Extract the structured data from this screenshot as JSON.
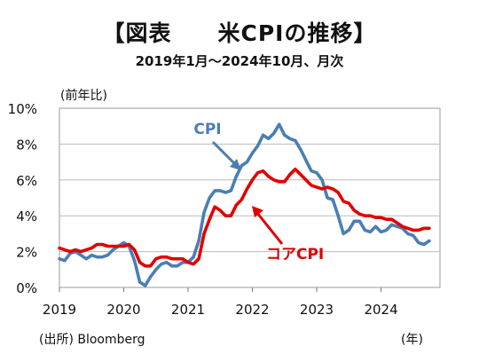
{
  "title": "【図表　　米CPIの推移】",
  "subtitle": "2019年1月～2024年10月、月次",
  "unit_label": "(前年比)",
  "source": "(出所) Bloomberg",
  "x_unit": "(年)",
  "chart_data": {
    "type": "line",
    "ylim": [
      0,
      10
    ],
    "yticks": [
      "0%",
      "2%",
      "4%",
      "6%",
      "8%",
      "10%"
    ],
    "xticks": [
      "2019",
      "2020",
      "2021",
      "2022",
      "2023",
      "2024"
    ],
    "x_start": "2019-01",
    "grid": true,
    "series": [
      {
        "name": "CPI",
        "color": "#4a7eb5",
        "values": [
          1.6,
          1.5,
          1.9,
          2.0,
          1.8,
          1.6,
          1.8,
          1.7,
          1.7,
          1.8,
          2.1,
          2.3,
          2.5,
          2.3,
          1.5,
          0.3,
          0.1,
          0.6,
          1.0,
          1.3,
          1.4,
          1.2,
          1.2,
          1.4,
          1.4,
          1.7,
          2.6,
          4.2,
          5.0,
          5.4,
          5.4,
          5.3,
          5.4,
          6.2,
          6.8,
          7.0,
          7.5,
          7.9,
          8.5,
          8.3,
          8.6,
          9.1,
          8.5,
          8.3,
          8.2,
          7.7,
          7.1,
          6.5,
          6.4,
          6.0,
          5.0,
          4.9,
          4.0,
          3.0,
          3.2,
          3.7,
          3.7,
          3.2,
          3.1,
          3.4,
          3.1,
          3.2,
          3.5,
          3.4,
          3.3,
          3.0,
          2.9,
          2.5,
          2.4,
          2.6
        ]
      },
      {
        "name": "コアCPI",
        "color": "#e00000",
        "values": [
          2.2,
          2.1,
          2.0,
          2.1,
          2.0,
          2.1,
          2.2,
          2.4,
          2.4,
          2.3,
          2.3,
          2.3,
          2.3,
          2.4,
          2.1,
          1.4,
          1.2,
          1.2,
          1.6,
          1.7,
          1.7,
          1.6,
          1.6,
          1.6,
          1.4,
          1.3,
          1.6,
          3.0,
          3.8,
          4.5,
          4.3,
          4.0,
          4.0,
          4.6,
          4.9,
          5.5,
          6.0,
          6.4,
          6.5,
          6.2,
          6.0,
          5.9,
          5.9,
          6.3,
          6.6,
          6.3,
          6.0,
          5.7,
          5.6,
          5.5,
          5.6,
          5.5,
          5.3,
          4.8,
          4.7,
          4.3,
          4.1,
          4.0,
          4.0,
          3.9,
          3.9,
          3.8,
          3.8,
          3.6,
          3.4,
          3.3,
          3.2,
          3.2,
          3.3,
          3.3
        ]
      }
    ]
  }
}
